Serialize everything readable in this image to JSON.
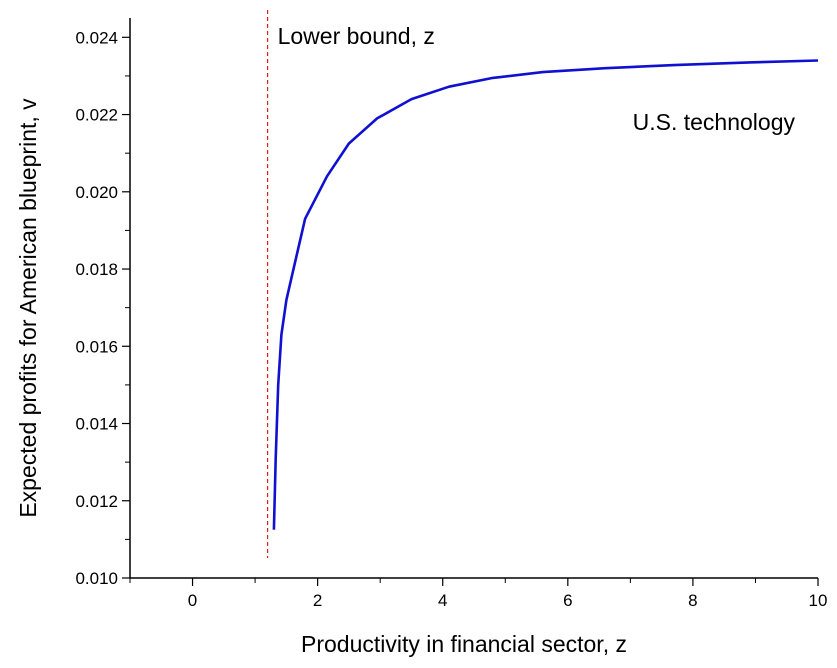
{
  "chart_data": {
    "type": "line",
    "title": "",
    "xlabel": "Productivity in financial sector, z",
    "ylabel": "Expected profits for American blueprint, v",
    "xlim": [
      -1,
      10
    ],
    "ylim": [
      0.01,
      0.0245
    ],
    "x_ticks": [
      0,
      2,
      4,
      6,
      8,
      10
    ],
    "x_tick_labels": [
      "0",
      "2",
      "4",
      "6",
      "8",
      "10"
    ],
    "y_ticks": [
      0.01,
      0.012,
      0.014,
      0.016,
      0.018,
      0.02,
      0.022,
      0.024
    ],
    "y_tick_labels": [
      "0.010",
      "0.012",
      "0.014",
      "0.016",
      "0.018",
      "0.020",
      "0.022",
      "0.024"
    ],
    "grid": false,
    "series": [
      {
        "name": "U.S. technology",
        "color": "#1010d0",
        "x": [
          1.3,
          1.33,
          1.37,
          1.42,
          1.5,
          1.6,
          1.8,
          2.15,
          2.5,
          2.95,
          3.5,
          4.1,
          4.8,
          5.6,
          6.6,
          7.7,
          8.9,
          10.0
        ],
        "y": [
          0.01125,
          0.0131,
          0.015,
          0.0163,
          0.0172,
          0.0179,
          0.0193,
          0.0204,
          0.02125,
          0.0219,
          0.0224,
          0.02272,
          0.02295,
          0.0231,
          0.0232,
          0.02328,
          0.02335,
          0.0234
        ]
      }
    ],
    "reference_line": {
      "label": "Lower bound, z",
      "x": 1.2,
      "color": "#e02020",
      "style": "dashed"
    },
    "annotations": [
      {
        "text": "U.S. technology"
      }
    ]
  }
}
